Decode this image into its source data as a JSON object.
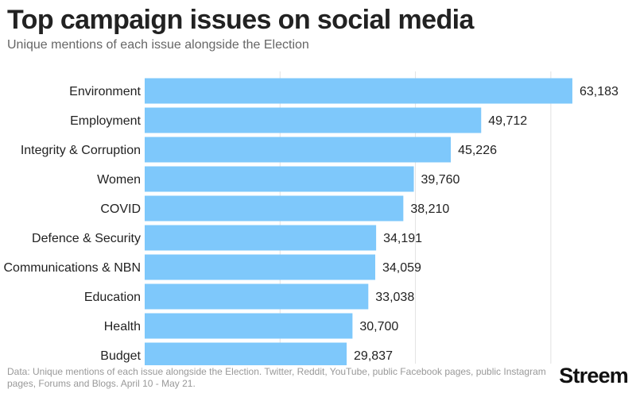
{
  "header": {
    "title": "Top campaign issues on social media",
    "subtitle": "Unique mentions of each issue alongside the Election"
  },
  "footer": {
    "source": "Data: Unique mentions of each issue alongside the Election. Twitter, Reddit, YouTube, public Facebook pages, public Instagram pages, Forums and Blogs. April 10 - May 21.",
    "logo": "Streem"
  },
  "colors": {
    "bar": "#7ec8fb",
    "grid": "#e2e2e2",
    "label": "#222222"
  },
  "chart_data": {
    "type": "bar",
    "orientation": "horizontal",
    "title": "Top campaign issues on social media",
    "subtitle": "Unique mentions of each issue alongside the Election",
    "categories": [
      "Environment",
      "Employment",
      "Integrity & Corruption",
      "Women",
      "COVID",
      "Defence & Security",
      "Communications & NBN",
      "Education",
      "Health",
      "Budget"
    ],
    "values": [
      63183,
      49712,
      45226,
      39760,
      38210,
      34191,
      34059,
      33038,
      30700,
      29837
    ],
    "value_labels": [
      "63,183",
      "49,712",
      "45,226",
      "39,760",
      "38,210",
      "34,191",
      "34,059",
      "33,038",
      "30,700",
      "29,837"
    ],
    "xlim": [
      0,
      70000
    ],
    "grid": true,
    "legend": "none"
  }
}
